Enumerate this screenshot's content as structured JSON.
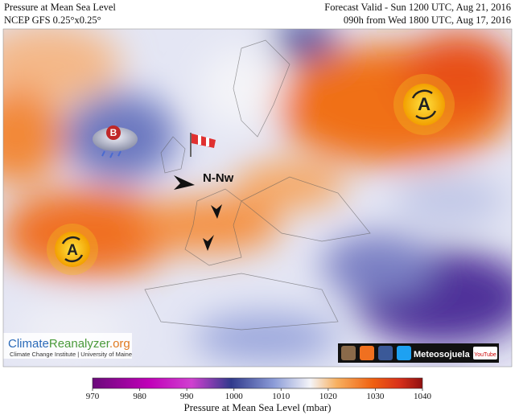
{
  "header": {
    "left": [
      "Pressure at Mean Sea Level",
      "NCEP GFS 0.25°x0.25°"
    ],
    "right": [
      "Forecast Valid - Sun 1200 UTC, Aug 21, 2016",
      "090h from Wed 1800 UTC, Aug 17, 2016"
    ]
  },
  "map": {
    "wind": "N-Nw",
    "highs": [
      "A",
      "A"
    ],
    "low": "B",
    "logo": {
      "part1": "Climate",
      "part2": "Reanalyzer",
      "part3": ".org",
      "institute": "Climate Change Institute | University of Maine"
    },
    "social": {
      "name": "Meteosojuela",
      "youtube": "YouTube"
    }
  },
  "colorbar": {
    "range": [
      970,
      1040
    ],
    "ticks": [
      970,
      980,
      990,
      1000,
      1010,
      1020,
      1030,
      1040
    ],
    "label": "Pressure at Mean Sea Level (mbar)"
  }
}
